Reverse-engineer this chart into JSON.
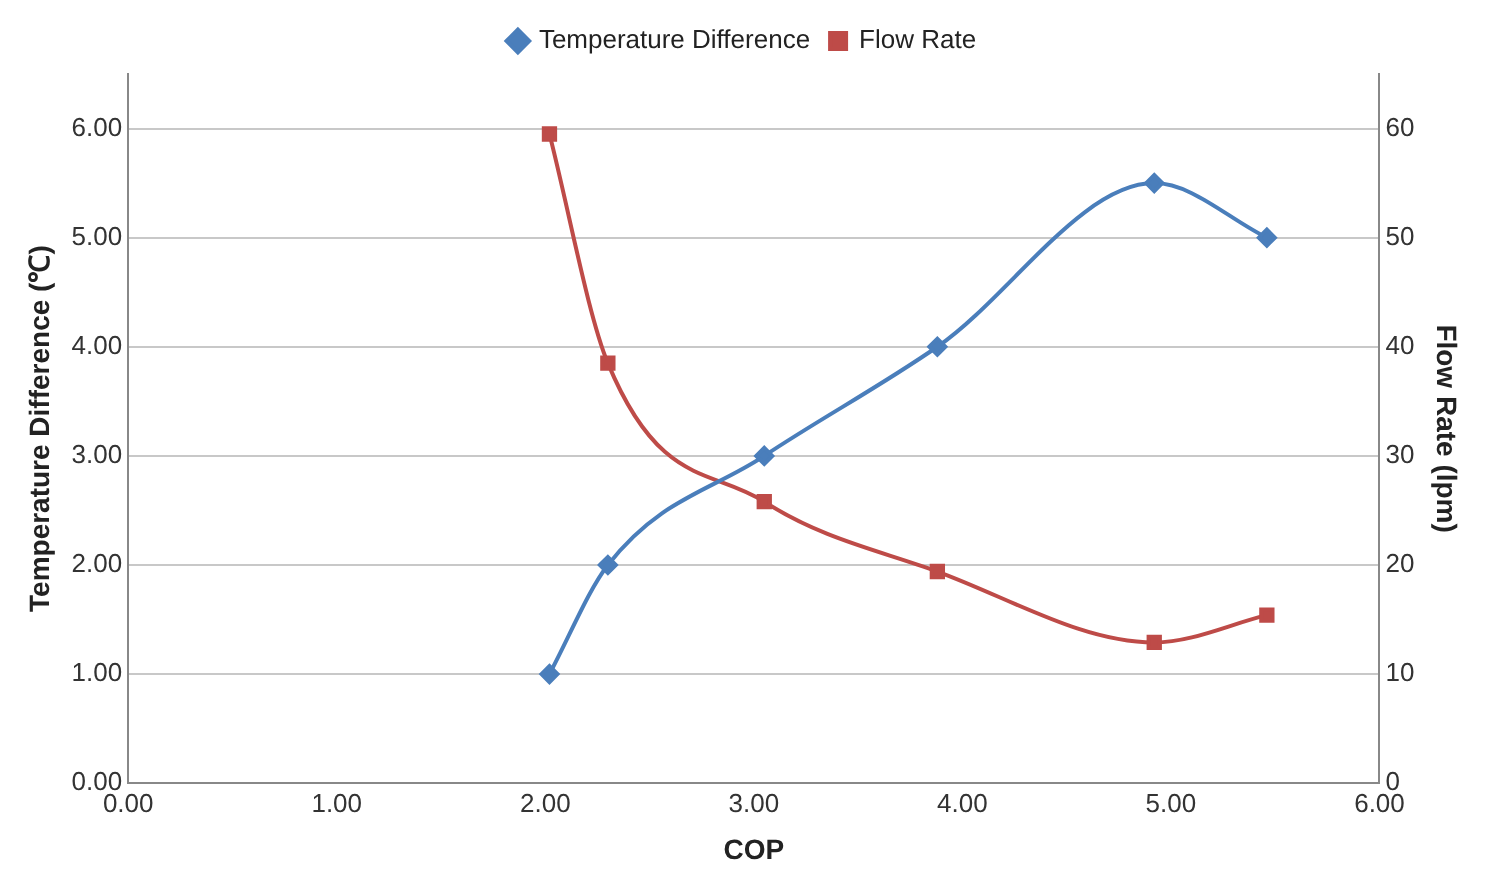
{
  "chart_data": {
    "type": "line",
    "xlabel": "COP",
    "ylabel": "Temperature Difference (℃)",
    "y2label": "Flow Rate (lpm)",
    "xlim": [
      0,
      6
    ],
    "xticks": [
      {
        "value": 0,
        "label": "0.00"
      },
      {
        "value": 1,
        "label": "1.00"
      },
      {
        "value": 2,
        "label": "2.00"
      },
      {
        "value": 3,
        "label": "3.00"
      },
      {
        "value": 4,
        "label": "4.00"
      },
      {
        "value": 5,
        "label": "5.00"
      },
      {
        "value": 6,
        "label": "6.00"
      }
    ],
    "ylim": [
      0,
      6.5
    ],
    "yticks": [
      {
        "value": 0,
        "label": "0.00"
      },
      {
        "value": 1,
        "label": "1.00"
      },
      {
        "value": 2,
        "label": "2.00"
      },
      {
        "value": 3,
        "label": "3.00"
      },
      {
        "value": 4,
        "label": "4.00"
      },
      {
        "value": 5,
        "label": "5.00"
      },
      {
        "value": 6,
        "label": "6.00"
      }
    ],
    "y2lim": [
      0,
      65
    ],
    "y2ticks": [
      0,
      10,
      20,
      30,
      40,
      50,
      60
    ],
    "grid": "y",
    "legend": "top",
    "series": [
      {
        "name": "Temperature Difference",
        "color": "#4a7ebb",
        "marker": "diamond",
        "x": [
          2.02,
          2.3,
          3.05,
          3.88,
          4.92,
          5.46
        ],
        "values": [
          1.0,
          2.0,
          3.0,
          4.0,
          5.5,
          5.0
        ]
      },
      {
        "name": "Flow Rate",
        "color": "#be4b48",
        "marker": "square",
        "axis": "y2",
        "x": [
          2.02,
          2.3,
          3.05,
          3.88,
          4.92,
          5.46
        ],
        "values": [
          59.5,
          38.5,
          25.8,
          19.4,
          12.9,
          15.4
        ]
      }
    ]
  }
}
